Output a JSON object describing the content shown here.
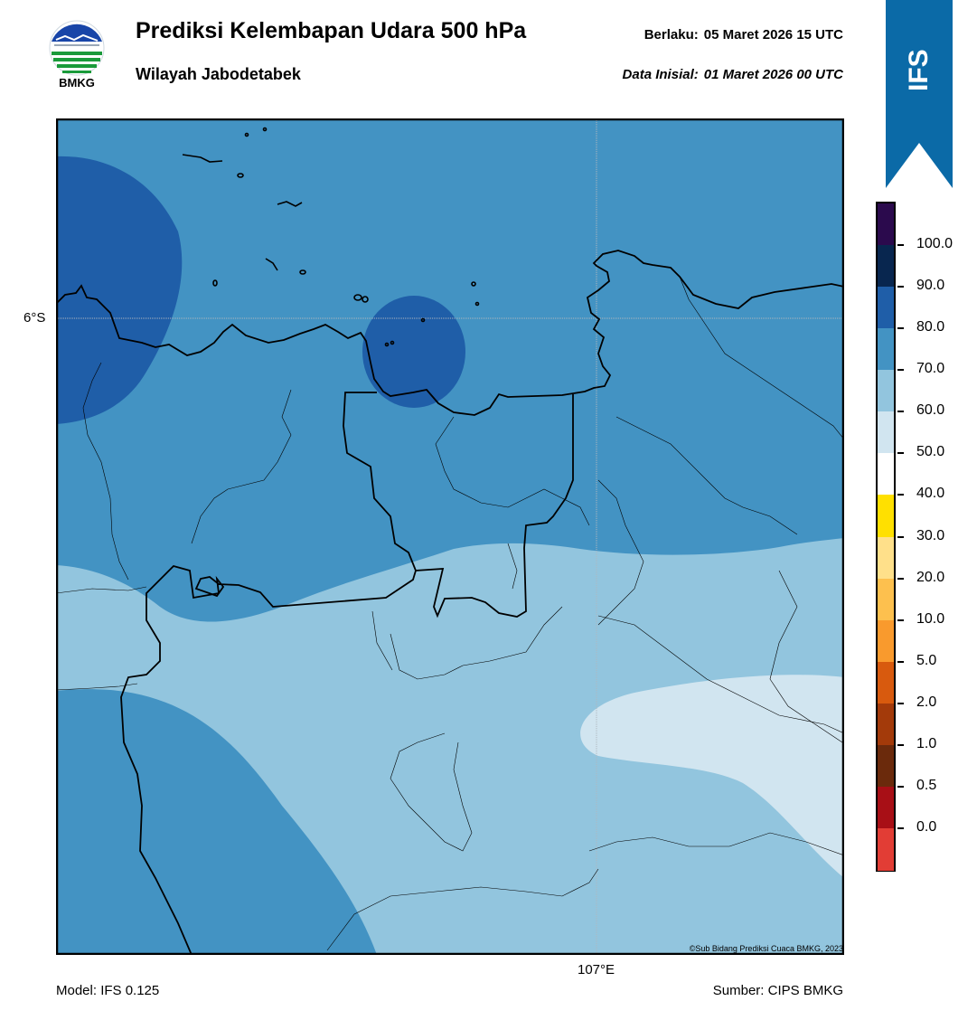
{
  "logo": {
    "text": "BMKG",
    "icon": "bmkg-logo"
  },
  "header": {
    "title": "Prediksi Kelembapan Udara 500 hPa",
    "subtitle": "Wilayah Jabodetabek",
    "valid_label": "Berlaku:",
    "valid_value": "05 Maret 2026 15 UTC",
    "init_label": "Data Inisial:",
    "init_value": "01 Maret 2026 00 UTC"
  },
  "ribbon": {
    "text": "IFS",
    "color": "#0b6aa7"
  },
  "map": {
    "lat_label": "6°S",
    "lon_label": "107°E",
    "copyright": "©Sub Bidang Prediksi Cuaca BMKG, 2023"
  },
  "footer": {
    "model": "Model: IFS 0.125",
    "source": "Sumber: CIPS BMKG"
  },
  "colorbar": {
    "labels": [
      "100.0",
      "90.0",
      "80.0",
      "70.0",
      "60.0",
      "50.0",
      "40.0",
      "30.0",
      "20.0",
      "10.0",
      "5.0",
      "2.0",
      "1.0",
      "0.5",
      "0.0"
    ],
    "colors_top_to_bottom": [
      "#2b0a4d",
      "#08264f",
      "#1f5ea8",
      "#4393c3",
      "#92c5de",
      "#d1e5f0",
      "#ffffff",
      "#ffe000",
      "#ffe08a",
      "#fdc04e",
      "#f99a2d",
      "#d85a0e",
      "#a33a0a",
      "#6b2a0c",
      "#a80f16",
      "#e23d35"
    ]
  },
  "colors": {
    "humidity_80_90": "#1f5ea8",
    "humidity_70_80": "#4393c3",
    "humidity_60_70": "#92c5de",
    "humidity_50_60": "#d1e5f0"
  }
}
